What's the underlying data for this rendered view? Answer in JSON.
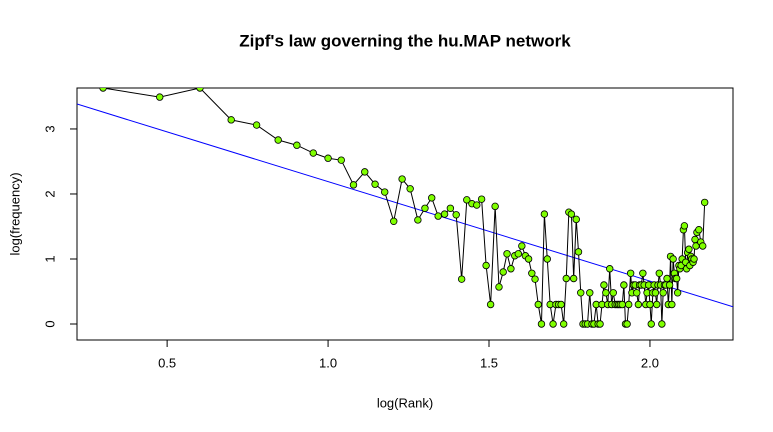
{
  "chart_data": {
    "type": "line",
    "title": "Zipf's law governing the hu.MAP network",
    "xlabel": "log(Rank)",
    "ylabel": "log(frequency)",
    "xlim": [
      0.22,
      2.258
    ],
    "ylim": [
      -0.246,
      3.63
    ],
    "xticks": [
      0.5,
      {
        "value": 1.0,
        "label": "1.0"
      },
      1.5,
      {
        "value": 2.0,
        "label": "2.0"
      }
    ],
    "yticks": [
      0,
      1,
      2,
      3
    ],
    "point_color": "#7fff00",
    "line_color": "#000000",
    "fit": {
      "intercept": 3.72,
      "slope": -1.53,
      "color": "#0000ff"
    },
    "x": [
      0.301,
      0.477,
      0.602,
      0.699,
      0.778,
      0.845,
      0.903,
      0.954,
      1.0,
      1.041,
      1.079,
      1.114,
      1.146,
      1.176,
      1.204,
      1.23,
      1.255,
      1.279,
      1.301,
      1.322,
      1.342,
      1.362,
      1.38,
      1.398,
      1.415,
      1.431,
      1.447,
      1.462,
      1.477,
      1.491,
      1.505,
      1.519,
      1.531,
      1.544,
      1.556,
      1.568,
      1.58,
      1.591,
      1.602,
      1.613,
      1.623,
      1.633,
      1.643,
      1.653,
      1.663,
      1.672,
      1.681,
      1.69,
      1.699,
      1.708,
      1.716,
      1.724,
      1.732,
      1.74,
      1.748,
      1.756,
      1.763,
      1.771,
      1.778,
      1.785,
      1.792,
      1.799,
      1.806,
      1.813,
      1.82,
      1.826,
      1.833,
      1.839,
      1.845,
      1.851,
      1.857,
      1.863,
      1.869,
      1.875,
      1.881,
      1.886,
      1.892,
      1.898,
      1.903,
      1.908,
      1.914,
      1.919,
      1.924,
      1.929,
      1.934,
      1.94,
      1.944,
      1.949,
      1.954,
      1.959,
      1.964,
      1.968,
      1.973,
      1.978,
      1.982,
      1.987,
      1.991,
      1.996,
      2.0,
      2.004,
      2.009,
      2.013,
      2.017,
      2.021,
      2.025,
      2.029,
      2.033,
      2.037,
      2.041,
      2.045,
      2.049,
      2.053,
      2.057,
      2.061,
      2.064,
      2.068,
      2.072,
      2.076,
      2.079,
      2.083,
      2.086,
      2.09,
      2.093,
      2.097,
      2.1,
      2.104,
      2.107,
      2.111,
      2.114,
      2.117,
      2.121,
      2.124,
      2.127,
      2.13,
      2.134,
      2.137,
      2.14,
      2.143,
      2.146,
      2.152,
      2.158,
      2.164,
      2.17
    ],
    "y": [
      3.63,
      3.49,
      3.63,
      3.14,
      3.06,
      2.83,
      2.75,
      2.63,
      2.55,
      2.52,
      2.14,
      2.34,
      2.15,
      2.03,
      1.58,
      2.23,
      2.08,
      1.6,
      1.78,
      1.94,
      1.66,
      1.69,
      1.78,
      1.68,
      0.69,
      1.91,
      1.85,
      1.83,
      1.92,
      0.9,
      0.3,
      1.81,
      0.57,
      0.8,
      1.08,
      0.85,
      1.05,
      1.08,
      1.2,
      1.05,
      1.0,
      0.78,
      0.69,
      0.3,
      0,
      1.69,
      1.0,
      0.3,
      0,
      0.3,
      0.3,
      0.3,
      0,
      0.7,
      1.72,
      1.69,
      0.7,
      1.61,
      1.11,
      0.48,
      0,
      0,
      0,
      0.48,
      0,
      0,
      0.3,
      0,
      0,
      0.3,
      0.6,
      0.48,
      0.3,
      0.85,
      0.3,
      0.48,
      0.3,
      0.3,
      0.3,
      0.3,
      0.3,
      0.6,
      0,
      0,
      0.3,
      0.78,
      0.48,
      0.6,
      0.6,
      0.48,
      0.3,
      0.6,
      0.6,
      0.78,
      0.6,
      0.3,
      0.48,
      0.6,
      0.3,
      0,
      0.48,
      0.6,
      0.48,
      0.3,
      0.6,
      0.78,
      0.6,
      0,
      0.48,
      0.6,
      0.6,
      0.7,
      0.3,
      0.6,
      1.04,
      0.3,
      1.0,
      0.78,
      0.7,
      0.7,
      0.48,
      0.9,
      0.85,
      0.9,
      1.0,
      1.45,
      1.51,
      0.95,
      0.85,
      1.1,
      1.15,
      0.9,
      1.04,
      1.0,
      0.95,
      1.0,
      1.3,
      1.2,
      1.41,
      1.45,
      1.26,
      1.2,
      1.87
    ]
  }
}
